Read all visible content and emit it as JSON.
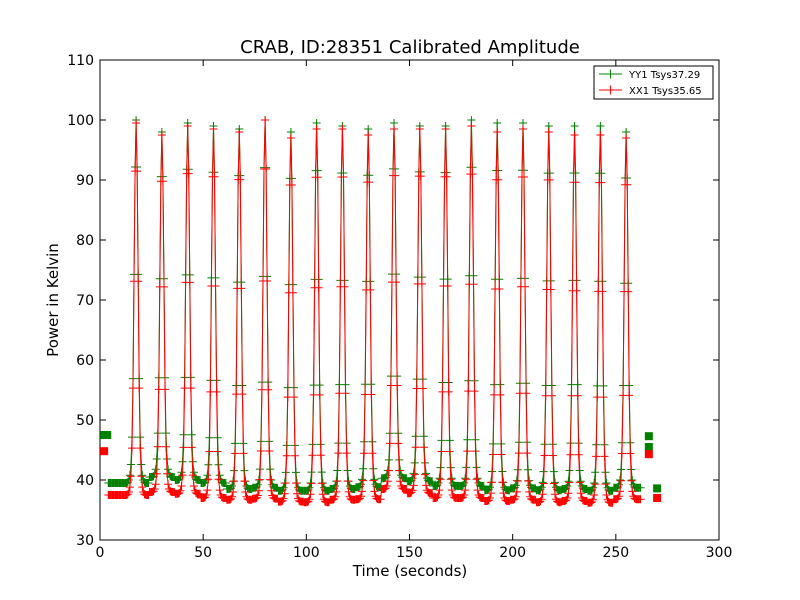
{
  "chart_data": {
    "type": "line",
    "title": "CRAB, ID:28351 Calibrated Amplitude",
    "xlabel": "Time (seconds)",
    "ylabel": "Power in Kelvin",
    "xlim": [
      0,
      300
    ],
    "ylim": [
      30,
      110
    ],
    "xticks": [
      0,
      50,
      100,
      150,
      200,
      250,
      300
    ],
    "yticks": [
      30,
      40,
      50,
      60,
      70,
      80,
      90,
      100,
      110
    ],
    "grid": false,
    "legend_position": "top-right",
    "peak_times": [
      17.5,
      30,
      42.5,
      55,
      67.5,
      80,
      92.5,
      105,
      117.5,
      130,
      142.5,
      155,
      167.5,
      180,
      192.5,
      205,
      217.5,
      230,
      242.5,
      255
    ],
    "series": [
      {
        "name": "YY1 Tsys37.29",
        "color": "#008000",
        "marker": "+",
        "x_range": [
          4,
          262
        ],
        "baseline": [
          39.5,
          40.5,
          40.0,
          39.5,
          38.5,
          38.7,
          38.2,
          38.2,
          38.5,
          38.8,
          40.3,
          39.8,
          39.0,
          39.0,
          38.3,
          38.6,
          38.3,
          38.5,
          38.2,
          38.7
        ],
        "peaks": [
          100,
          98,
          99.5,
          99,
          98.5,
          100,
          98,
          99.5,
          99,
          98.5,
          99.5,
          99,
          99,
          100,
          99.5,
          99.5,
          99,
          99,
          99,
          98
        ],
        "start_squares": [
          {
            "x": 2,
            "y": 47.5
          },
          {
            "x": 3.5,
            "y": 47.5
          }
        ],
        "end_squares": [
          {
            "x": 266,
            "y": 47.3
          },
          {
            "x": 266,
            "y": 45.5
          },
          {
            "x": 270,
            "y": 38.6
          }
        ]
      },
      {
        "name": "XX1 Tsys35.65",
        "color": "#ff0000",
        "marker": "+",
        "x_range": [
          4,
          262
        ],
        "baseline": [
          37.5,
          38.0,
          37.7,
          37.0,
          36.7,
          36.9,
          36.4,
          36.3,
          36.7,
          36.8,
          38.5,
          37.8,
          37.0,
          37.0,
          36.5,
          36.7,
          36.3,
          36.5,
          36.2,
          36.8
        ],
        "peaks": [
          99.5,
          97.5,
          99,
          98.5,
          98,
          100,
          97,
          98.5,
          98.5,
          97.5,
          98.5,
          98.5,
          98.5,
          99,
          98,
          98.5,
          98,
          97.5,
          97.5,
          97
        ],
        "start_squares": [
          {
            "x": 2,
            "y": 44.8
          }
        ],
        "end_squares": [
          {
            "x": 266,
            "y": 44.3
          },
          {
            "x": 270,
            "y": 37.0
          }
        ]
      }
    ]
  }
}
